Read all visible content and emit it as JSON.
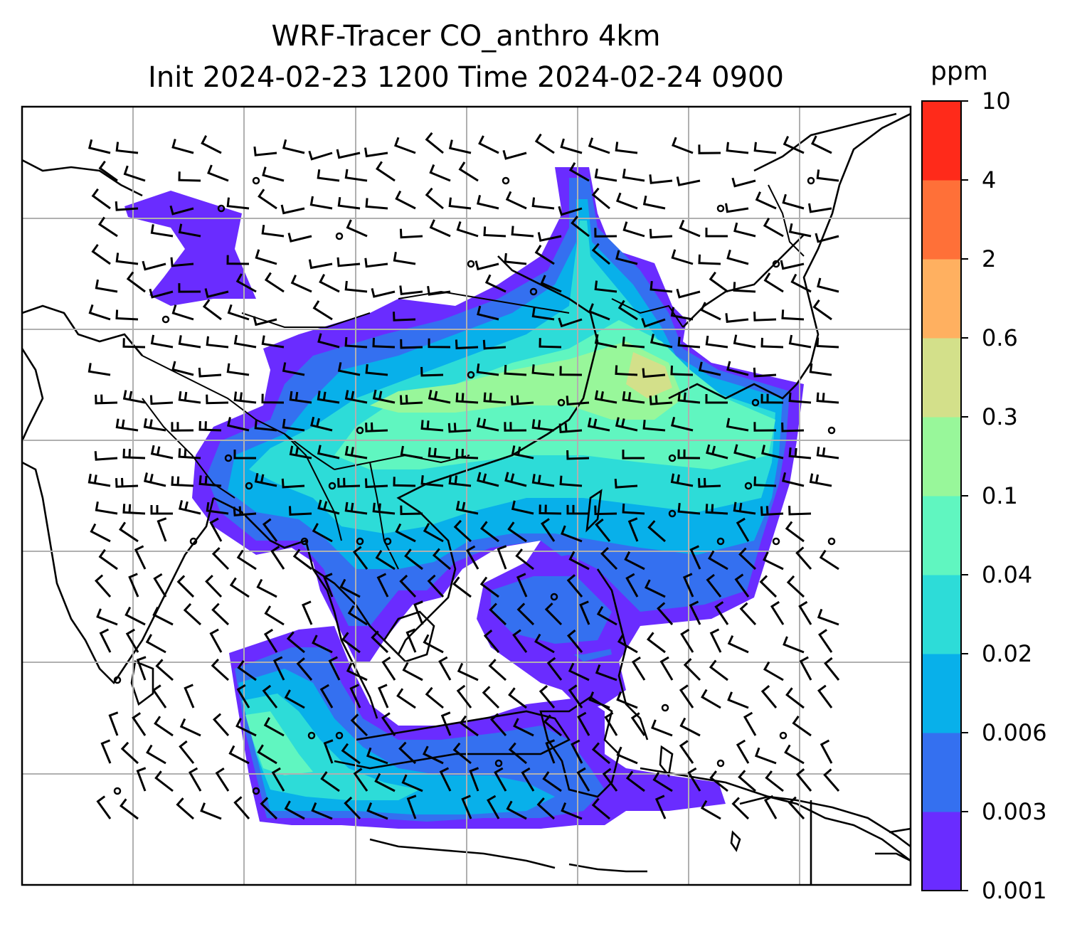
{
  "title_line1": "WRF-Tracer CO_anthro 4km",
  "title_line2": "Init 2024-02-23 1200 Time 2024-02-24 0900",
  "colorbar": {
    "unit": "ppm",
    "levels": [
      "0.001",
      "0.003",
      "0.006",
      "0.02",
      "0.04",
      "0.1",
      "0.3",
      "0.6",
      "2",
      "4",
      "10"
    ],
    "colors": [
      "#6a2cff",
      "#3470f0",
      "#08b0ea",
      "#2ddcd8",
      "#60f6c0",
      "#98f79a",
      "#d3e08a",
      "#ffb060",
      "#ff7038",
      "#ff2a1a"
    ]
  },
  "map": {
    "gridlines": true,
    "field": "CO_anthro tracer concentration",
    "overlays": [
      "coastlines",
      "country borders",
      "wind barbs"
    ]
  }
}
